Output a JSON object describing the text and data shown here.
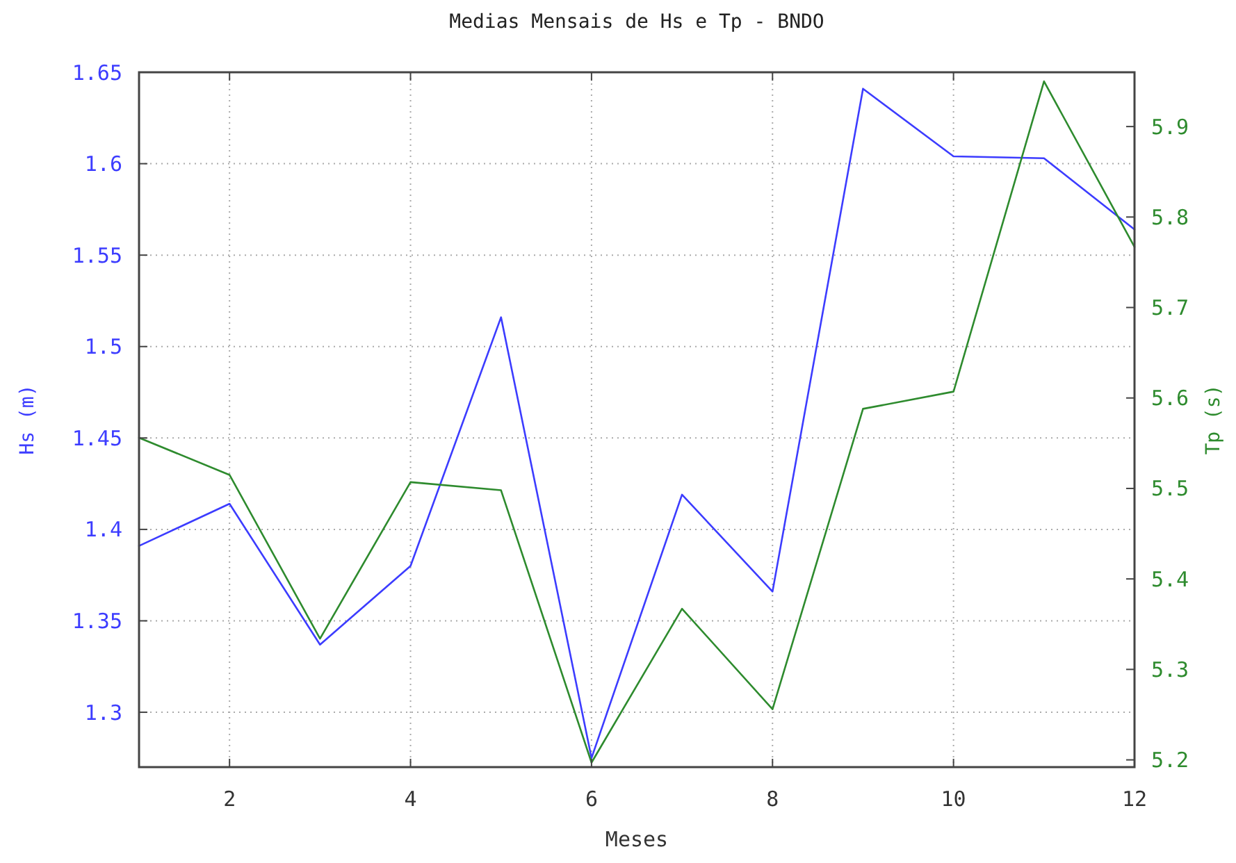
{
  "chart_data": {
    "type": "line",
    "title": "Medias Mensais de Hs e Tp - BNDO",
    "xlabel": "Meses",
    "ylabel": "Hs (m)",
    "y2label": "Tp (s)",
    "x": [
      1,
      2,
      3,
      4,
      5,
      6,
      7,
      8,
      9,
      10,
      11,
      12
    ],
    "series": [
      {
        "color": "#3c3cff",
        "values": [
          1.391,
          1.414,
          1.337,
          1.38,
          1.516,
          1.275,
          1.419,
          1.366,
          1.641,
          1.604,
          1.603,
          1.564
        ]
      },
      {
        "color": "#2e8b2e",
        "axis": "y2",
        "values": [
          5.556,
          5.515,
          5.334,
          5.507,
          5.498,
          5.197,
          5.367,
          5.256,
          5.588,
          5.607,
          5.95,
          5.767
        ]
      }
    ],
    "xlim": [
      1,
      12
    ],
    "xticks": [
      2,
      4,
      6,
      8,
      10,
      12
    ],
    "ylim": [
      1.27,
      1.65
    ],
    "yticks": [
      1.3,
      1.35,
      1.4,
      1.45,
      1.5,
      1.55,
      1.6,
      1.65
    ],
    "y2lim": [
      5.192,
      5.96
    ],
    "y2ticks": [
      5.2,
      5.3,
      5.4,
      5.5,
      5.6,
      5.7,
      5.8,
      5.9
    ],
    "grid": true,
    "marker": "none",
    "line_style": "solid"
  }
}
